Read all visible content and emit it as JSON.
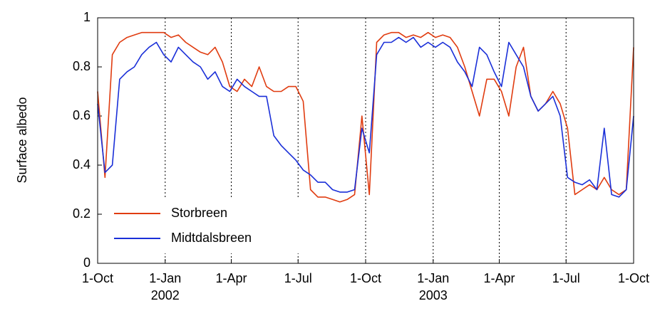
{
  "chart_data": {
    "type": "line",
    "y_label": "Surface albedo",
    "xlim": [
      0,
      730
    ],
    "xticks": [
      {
        "value": 0,
        "label": "1-Oct"
      },
      {
        "value": 92,
        "label": "1-Jan"
      },
      {
        "value": 182,
        "label": "1-Apr"
      },
      {
        "value": 273,
        "label": "1-Jul"
      },
      {
        "value": 365,
        "label": "1-Oct"
      },
      {
        "value": 457,
        "label": "1-Jan"
      },
      {
        "value": 547,
        "label": "1-Apr"
      },
      {
        "value": 638,
        "label": "1-Jul"
      },
      {
        "value": 730,
        "label": "1-Oct"
      }
    ],
    "x_year_labels": [
      {
        "value": 92,
        "label": "2002"
      },
      {
        "value": 457,
        "label": "2003"
      }
    ],
    "ylim": [
      0,
      1
    ],
    "yticks": [
      0,
      0.2,
      0.4,
      0.6,
      0.8,
      1
    ],
    "x": [
      0,
      10,
      20,
      30,
      40,
      50,
      60,
      70,
      80,
      90,
      100,
      110,
      120,
      130,
      140,
      150,
      160,
      170,
      180,
      190,
      200,
      210,
      220,
      230,
      240,
      250,
      260,
      270,
      280,
      290,
      300,
      310,
      320,
      330,
      340,
      350,
      360,
      370,
      380,
      390,
      400,
      410,
      420,
      430,
      440,
      450,
      460,
      470,
      480,
      490,
      500,
      510,
      520,
      530,
      540,
      550,
      560,
      570,
      580,
      590,
      600,
      610,
      620,
      630,
      640,
      650,
      660,
      670,
      680,
      690,
      700,
      710,
      720,
      730
    ],
    "series": [
      {
        "name": "Storbreen",
        "color": "#e03c10",
        "values": [
          0.7,
          0.35,
          0.85,
          0.9,
          0.92,
          0.93,
          0.94,
          0.94,
          0.94,
          0.94,
          0.92,
          0.93,
          0.9,
          0.88,
          0.86,
          0.85,
          0.88,
          0.82,
          0.72,
          0.7,
          0.75,
          0.72,
          0.8,
          0.72,
          0.7,
          0.7,
          0.72,
          0.72,
          0.66,
          0.3,
          0.27,
          0.27,
          0.26,
          0.25,
          0.26,
          0.28,
          0.6,
          0.28,
          0.9,
          0.93,
          0.94,
          0.94,
          0.92,
          0.93,
          0.92,
          0.94,
          0.92,
          0.93,
          0.92,
          0.88,
          0.8,
          0.7,
          0.6,
          0.75,
          0.75,
          0.7,
          0.6,
          0.8,
          0.88,
          0.68,
          0.62,
          0.65,
          0.7,
          0.65,
          0.55,
          0.28,
          0.3,
          0.32,
          0.3,
          0.35,
          0.3,
          0.28,
          0.3,
          0.88
        ]
      },
      {
        "name": "Midtdalsbreen",
        "color": "#1a2fd8",
        "values": [
          0.65,
          0.37,
          0.4,
          0.75,
          0.78,
          0.8,
          0.85,
          0.88,
          0.9,
          0.85,
          0.82,
          0.88,
          0.85,
          0.82,
          0.8,
          0.75,
          0.78,
          0.72,
          0.7,
          0.75,
          0.72,
          0.7,
          0.68,
          0.68,
          0.52,
          0.48,
          0.45,
          0.42,
          0.38,
          0.36,
          0.33,
          0.33,
          0.3,
          0.29,
          0.29,
          0.3,
          0.55,
          0.45,
          0.85,
          0.9,
          0.9,
          0.92,
          0.9,
          0.92,
          0.88,
          0.9,
          0.88,
          0.9,
          0.88,
          0.82,
          0.78,
          0.72,
          0.88,
          0.85,
          0.78,
          0.72,
          0.9,
          0.85,
          0.8,
          0.68,
          0.62,
          0.65,
          0.68,
          0.6,
          0.35,
          0.33,
          0.32,
          0.34,
          0.3,
          0.55,
          0.28,
          0.27,
          0.3,
          0.6
        ]
      }
    ]
  }
}
